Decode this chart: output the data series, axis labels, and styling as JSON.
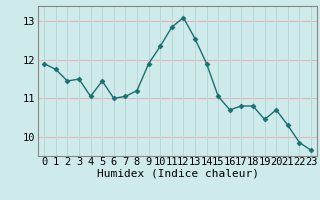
{
  "x": [
    0,
    1,
    2,
    3,
    4,
    5,
    6,
    7,
    8,
    9,
    10,
    11,
    12,
    13,
    14,
    15,
    16,
    17,
    18,
    19,
    20,
    21,
    22,
    23
  ],
  "y": [
    11.9,
    11.75,
    11.45,
    11.5,
    11.05,
    11.45,
    11.0,
    11.05,
    11.2,
    11.9,
    12.35,
    12.85,
    13.1,
    12.55,
    11.9,
    11.05,
    10.7,
    10.8,
    10.8,
    10.45,
    10.7,
    10.3,
    9.85,
    9.65
  ],
  "line_color": "#1a7070",
  "marker": "D",
  "marker_size": 2.5,
  "bg_color": "#ceeaea",
  "grid_color_h": "#e8b0b0",
  "grid_color_v": "#b8d8d8",
  "xlabel": "Humidex (Indice chaleur)",
  "xlabel_fontsize": 8,
  "tick_fontsize": 7.5,
  "ylim": [
    9.5,
    13.4
  ],
  "yticks": [
    10,
    11,
    12,
    13
  ],
  "xticks": [
    0,
    1,
    2,
    3,
    4,
    5,
    6,
    7,
    8,
    9,
    10,
    11,
    12,
    13,
    14,
    15,
    16,
    17,
    18,
    19,
    20,
    21,
    22,
    23
  ],
  "line_width": 1.0,
  "spine_color": "#888888"
}
